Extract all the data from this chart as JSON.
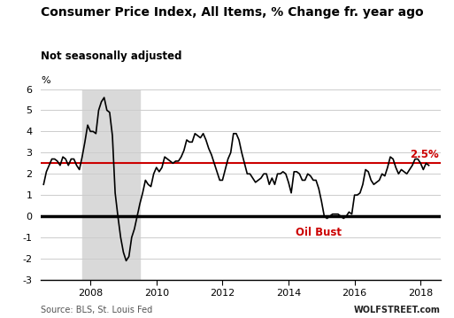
{
  "title": "Consumer Price Index, All Items, % Change fr. year ago",
  "subtitle": "Not seasonally adjusted",
  "source_left": "Source: BLS, St. Louis Fed",
  "source_right": "WOLFSTREET.com",
  "ylim": [
    -3,
    6
  ],
  "yticks": [
    -3,
    -2,
    -1,
    0,
    1,
    2,
    3,
    4,
    5,
    6
  ],
  "xlim_start": 2006.5,
  "xlim_end": 2018.6,
  "xticks": [
    2008,
    2010,
    2012,
    2014,
    2016,
    2018
  ],
  "reference_line": 2.5,
  "zero_line": 0,
  "recession_start": 2007.75,
  "recession_end": 2009.5,
  "oil_bust_x": 2014.9,
  "oil_bust_y": -0.75,
  "line_color": "#000000",
  "ref_line_color": "#cc0000",
  "recession_color": "#d9d9d9",
  "background_color": "#ffffff",
  "dates": [
    2006.583,
    2006.667,
    2006.75,
    2006.833,
    2006.917,
    2007.0,
    2007.083,
    2007.167,
    2007.25,
    2007.333,
    2007.417,
    2007.5,
    2007.583,
    2007.667,
    2007.75,
    2007.833,
    2007.917,
    2008.0,
    2008.083,
    2008.167,
    2008.25,
    2008.333,
    2008.417,
    2008.5,
    2008.583,
    2008.667,
    2008.75,
    2008.833,
    2008.917,
    2009.0,
    2009.083,
    2009.167,
    2009.25,
    2009.333,
    2009.417,
    2009.5,
    2009.583,
    2009.667,
    2009.75,
    2009.833,
    2009.917,
    2010.0,
    2010.083,
    2010.167,
    2010.25,
    2010.333,
    2010.417,
    2010.5,
    2010.583,
    2010.667,
    2010.75,
    2010.833,
    2010.917,
    2011.0,
    2011.083,
    2011.167,
    2011.25,
    2011.333,
    2011.417,
    2011.5,
    2011.583,
    2011.667,
    2011.75,
    2011.833,
    2011.917,
    2012.0,
    2012.083,
    2012.167,
    2012.25,
    2012.333,
    2012.417,
    2012.5,
    2012.583,
    2012.667,
    2012.75,
    2012.833,
    2012.917,
    2013.0,
    2013.083,
    2013.167,
    2013.25,
    2013.333,
    2013.417,
    2013.5,
    2013.583,
    2013.667,
    2013.75,
    2013.833,
    2013.917,
    2014.0,
    2014.083,
    2014.167,
    2014.25,
    2014.333,
    2014.417,
    2014.5,
    2014.583,
    2014.667,
    2014.75,
    2014.833,
    2014.917,
    2015.0,
    2015.083,
    2015.167,
    2015.25,
    2015.333,
    2015.417,
    2015.5,
    2015.583,
    2015.667,
    2015.75,
    2015.833,
    2015.917,
    2016.0,
    2016.083,
    2016.167,
    2016.25,
    2016.333,
    2016.417,
    2016.5,
    2016.583,
    2016.667,
    2016.75,
    2016.833,
    2016.917,
    2017.0,
    2017.083,
    2017.167,
    2017.25,
    2017.333,
    2017.417,
    2017.5,
    2017.583,
    2017.667,
    2017.75,
    2017.833,
    2017.917,
    2018.0,
    2018.083,
    2018.167,
    2018.25
  ],
  "values": [
    1.5,
    2.1,
    2.4,
    2.7,
    2.7,
    2.6,
    2.4,
    2.8,
    2.7,
    2.4,
    2.7,
    2.7,
    2.4,
    2.2,
    2.8,
    3.5,
    4.3,
    4.0,
    4.0,
    3.9,
    5.0,
    5.4,
    5.6,
    5.0,
    4.9,
    3.8,
    1.1,
    0.0,
    -1.0,
    -1.7,
    -2.1,
    -1.9,
    -1.0,
    -0.6,
    0.0,
    0.6,
    1.1,
    1.7,
    1.5,
    1.4,
    2.0,
    2.3,
    2.1,
    2.3,
    2.8,
    2.7,
    2.6,
    2.5,
    2.6,
    2.6,
    2.8,
    3.1,
    3.6,
    3.5,
    3.5,
    3.9,
    3.8,
    3.7,
    3.9,
    3.6,
    3.2,
    2.9,
    2.5,
    2.1,
    1.7,
    1.7,
    2.2,
    2.7,
    3.0,
    3.9,
    3.9,
    3.6,
    3.0,
    2.5,
    2.0,
    2.0,
    1.8,
    1.6,
    1.7,
    1.8,
    2.0,
    2.0,
    1.5,
    1.8,
    1.5,
    2.0,
    2.0,
    2.1,
    2.0,
    1.6,
    1.1,
    2.1,
    2.1,
    2.0,
    1.7,
    1.7,
    2.0,
    1.9,
    1.7,
    1.7,
    1.3,
    0.7,
    0.0,
    -0.1,
    0.0,
    0.1,
    0.1,
    0.1,
    0.0,
    -0.1,
    0.0,
    0.2,
    0.1,
    1.0,
    1.0,
    1.1,
    1.5,
    2.2,
    2.1,
    1.7,
    1.5,
    1.6,
    1.7,
    2.0,
    1.9,
    2.3,
    2.8,
    2.7,
    2.3,
    2.0,
    2.2,
    2.1,
    2.0,
    2.2,
    2.4,
    2.7,
    2.7,
    2.5,
    2.2,
    2.5,
    2.4
  ]
}
